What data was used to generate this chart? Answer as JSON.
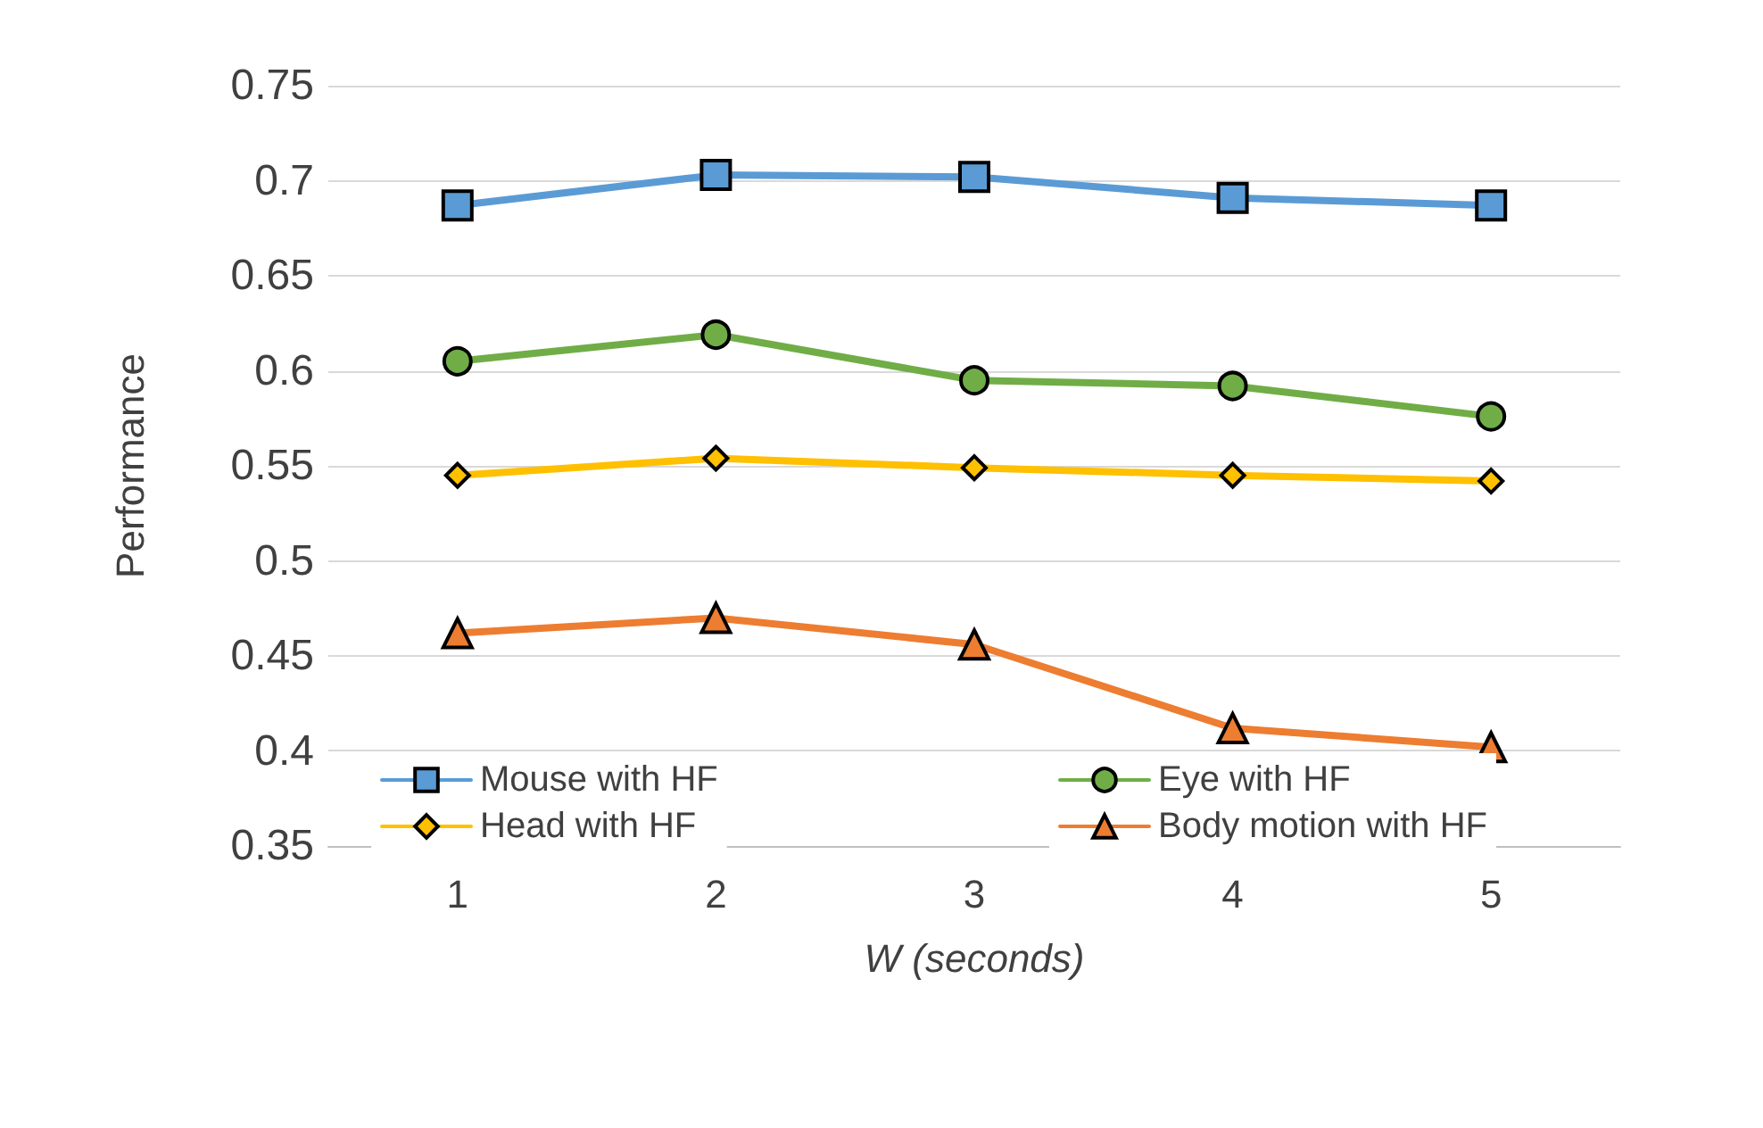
{
  "chart_data": {
    "type": "line",
    "xlabel": "W (seconds)",
    "ylabel": "Performance",
    "categories": [
      "1",
      "2",
      "3",
      "4",
      "5"
    ],
    "series": [
      {
        "name": "Mouse with HF",
        "color": "#5b9bd5",
        "marker": "square",
        "values": [
          0.687,
          0.703,
          0.702,
          0.691,
          0.687
        ]
      },
      {
        "name": "Eye with HF",
        "color": "#70ad47",
        "marker": "circle",
        "values": [
          0.605,
          0.619,
          0.595,
          0.592,
          0.576
        ]
      },
      {
        "name": "Head with HF",
        "color": "#ffc000",
        "marker": "diamond",
        "values": [
          0.545,
          0.554,
          0.549,
          0.545,
          0.542
        ]
      },
      {
        "name": "Body motion with HF",
        "color": "#ed7d31",
        "marker": "triangle",
        "values": [
          0.462,
          0.47,
          0.456,
          0.412,
          0.402
        ]
      }
    ],
    "ylim": [
      0.35,
      0.75
    ],
    "yticks": [
      0.35,
      0.4,
      0.45,
      0.5,
      0.55,
      0.6,
      0.65,
      0.7,
      0.75
    ],
    "grid": "y",
    "legend": "bottom",
    "line_style": "solid"
  }
}
